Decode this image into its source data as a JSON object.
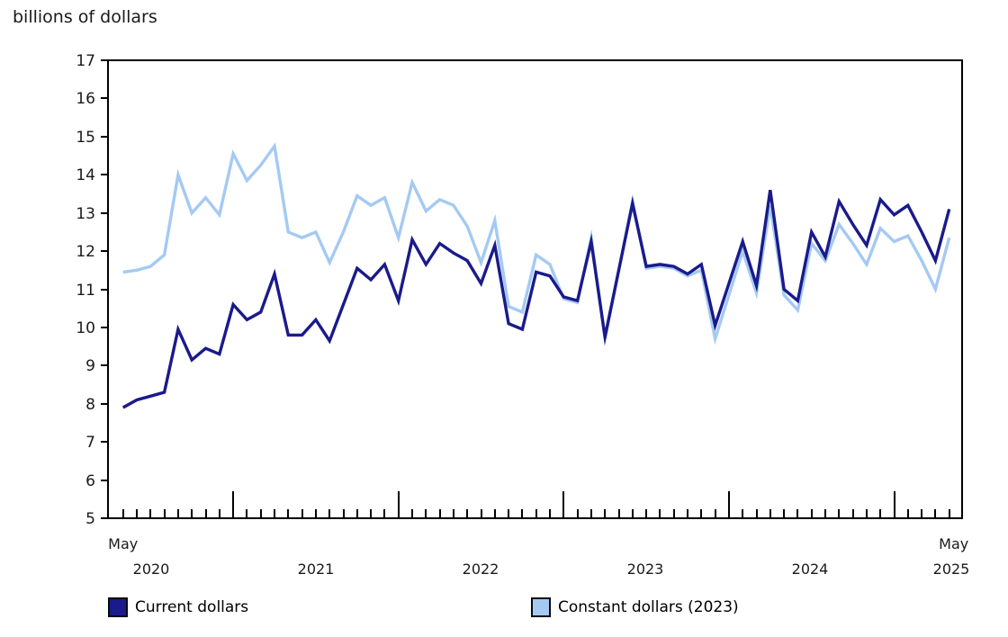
{
  "page": {
    "title": "billions of dollars"
  },
  "chart_data": {
    "type": "line",
    "title": "billions of dollars",
    "unit_label": "billions of dollars",
    "grid": false,
    "legend_position": "bottom",
    "y_axis": {
      "min": 5,
      "max": 17,
      "tick_step": 1,
      "ticks": [
        5,
        6,
        7,
        8,
        9,
        10,
        11,
        12,
        13,
        14,
        15,
        16,
        17
      ]
    },
    "x_axis": {
      "first_point_label": "May",
      "last_point_label": "May",
      "start": "May 2020",
      "end": "May 2025",
      "year_labels": [
        "2020",
        "2021",
        "2022",
        "2023",
        "2024",
        "2025"
      ]
    },
    "categories": [
      "2020-05",
      "2020-06",
      "2020-07",
      "2020-08",
      "2020-09",
      "2020-10",
      "2020-11",
      "2020-12",
      "2021-01",
      "2021-02",
      "2021-03",
      "2021-04",
      "2021-05",
      "2021-06",
      "2021-07",
      "2021-08",
      "2021-09",
      "2021-10",
      "2021-11",
      "2021-12",
      "2022-01",
      "2022-02",
      "2022-03",
      "2022-04",
      "2022-05",
      "2022-06",
      "2022-07",
      "2022-08",
      "2022-09",
      "2022-10",
      "2022-11",
      "2022-12",
      "2023-01",
      "2023-02",
      "2023-03",
      "2023-04",
      "2023-05",
      "2023-06",
      "2023-07",
      "2023-08",
      "2023-09",
      "2023-10",
      "2023-11",
      "2023-12",
      "2024-01",
      "2024-02",
      "2024-03",
      "2024-04",
      "2024-05",
      "2024-06",
      "2024-07",
      "2024-08",
      "2024-09",
      "2024-10",
      "2024-11",
      "2024-12",
      "2025-01",
      "2025-02",
      "2025-03",
      "2025-04",
      "2025-05"
    ],
    "series": [
      {
        "name": "Current dollars",
        "color": "#1A1A8C",
        "values": [
          7.9,
          8.1,
          8.2,
          8.3,
          9.95,
          9.15,
          9.45,
          9.3,
          10.6,
          10.2,
          10.4,
          11.4,
          9.8,
          9.8,
          10.2,
          9.65,
          10.6,
          11.55,
          11.25,
          11.65,
          10.7,
          12.3,
          11.65,
          12.2,
          11.95,
          11.75,
          11.15,
          12.15,
          10.1,
          9.95,
          11.45,
          11.35,
          10.8,
          10.7,
          12.25,
          9.75,
          11.5,
          13.25,
          11.6,
          11.65,
          11.6,
          11.4,
          11.65,
          10.05,
          11.15,
          12.25,
          11.1,
          13.6,
          11.0,
          10.7,
          12.5,
          11.85,
          13.3,
          12.7,
          12.15,
          13.35,
          12.95,
          13.2,
          12.5,
          11.75,
          13.1
        ]
      },
      {
        "name": "Constant dollars (2023)",
        "color": "#A4CAF3",
        "values": [
          11.45,
          11.5,
          11.6,
          11.9,
          14.0,
          13.0,
          13.4,
          12.95,
          14.55,
          13.85,
          14.25,
          14.75,
          12.5,
          12.35,
          12.5,
          11.7,
          12.5,
          13.45,
          13.2,
          13.4,
          12.35,
          13.8,
          13.05,
          13.35,
          13.2,
          12.65,
          11.7,
          12.8,
          10.55,
          10.4,
          11.9,
          11.65,
          10.75,
          10.65,
          12.35,
          9.7,
          11.5,
          13.3,
          11.55,
          11.6,
          11.55,
          11.35,
          11.5,
          9.7,
          10.85,
          12.0,
          10.9,
          13.2,
          10.85,
          10.45,
          12.2,
          11.75,
          12.7,
          12.2,
          11.65,
          12.6,
          12.25,
          12.4,
          11.75,
          11.0,
          12.35
        ]
      }
    ]
  },
  "legend": {
    "items": [
      {
        "label": "Current dollars",
        "color": "#1A1A8C"
      },
      {
        "label": "Constant dollars (2023)",
        "color": "#A4CAF3"
      }
    ]
  }
}
